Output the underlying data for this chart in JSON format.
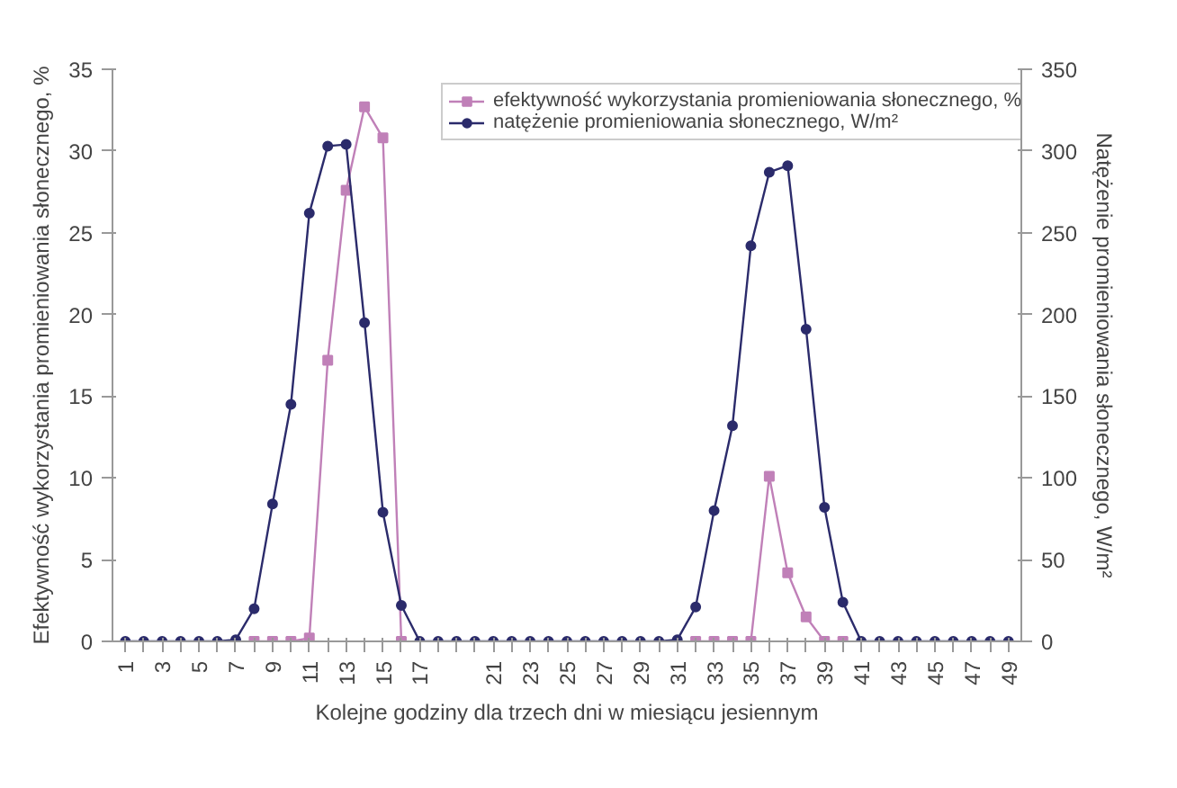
{
  "chart_data": {
    "type": "line",
    "xlabel": "Kolejne godziny dla trzech dni w miesiącu jesiennym",
    "ylabel": "Efektywność wykorzystania promieniowania słonecznego, %",
    "y2label": "Natężenie promieniowania słonecznego, W/m²",
    "categories": [
      "1",
      null,
      "3",
      null,
      "5",
      null,
      "7",
      null,
      "9",
      null,
      "11",
      null,
      "13",
      null,
      "15",
      null,
      "17",
      null,
      null,
      null,
      "21",
      null,
      "23",
      null,
      "25",
      null,
      "27",
      null,
      "29",
      null,
      "31",
      null,
      "33",
      null,
      "35",
      null,
      "37",
      null,
      "39",
      null,
      "41",
      null,
      "43",
      null,
      "45",
      null,
      "47",
      null,
      "49"
    ],
    "series": [
      {
        "name": "efektywność wykorzystania promieniowania słonecznego, %",
        "color": "#c080b8",
        "marker": "square",
        "values": [
          null,
          null,
          null,
          null,
          null,
          null,
          null,
          0,
          0,
          0,
          0.2,
          17.2,
          27.6,
          32.7,
          30.8,
          0,
          null,
          null,
          null,
          null,
          null,
          null,
          null,
          null,
          null,
          null,
          null,
          null,
          null,
          null,
          null,
          0,
          0,
          0,
          0,
          10.1,
          4.2,
          1.5,
          0,
          0,
          null,
          null,
          null,
          null,
          null,
          null,
          null,
          null,
          null
        ]
      },
      {
        "name": "natężenie promieniowania słonecznego, W/m²",
        "color": "#2b2b6b",
        "marker": "circle",
        "axis": "y2",
        "values": [
          0,
          0,
          0,
          0,
          0,
          0,
          1,
          20,
          84,
          145,
          262,
          303,
          304,
          195,
          79,
          22,
          0,
          0,
          0,
          0,
          0,
          0,
          0,
          0,
          0,
          0,
          0,
          0,
          0,
          0,
          1,
          21,
          80,
          132,
          242,
          287,
          291,
          191,
          82,
          24,
          0,
          0,
          0,
          0,
          0,
          0,
          0,
          0,
          0
        ]
      }
    ],
    "ylim": [
      0,
      35
    ],
    "yticks": [
      0,
      5,
      10,
      15,
      20,
      25,
      30,
      35
    ],
    "y2lim": [
      0,
      350
    ],
    "y2ticks": [
      0,
      50,
      100,
      150,
      200,
      250,
      300,
      350
    ],
    "grid": false,
    "legend": "top right",
    "line_style": "solid"
  }
}
